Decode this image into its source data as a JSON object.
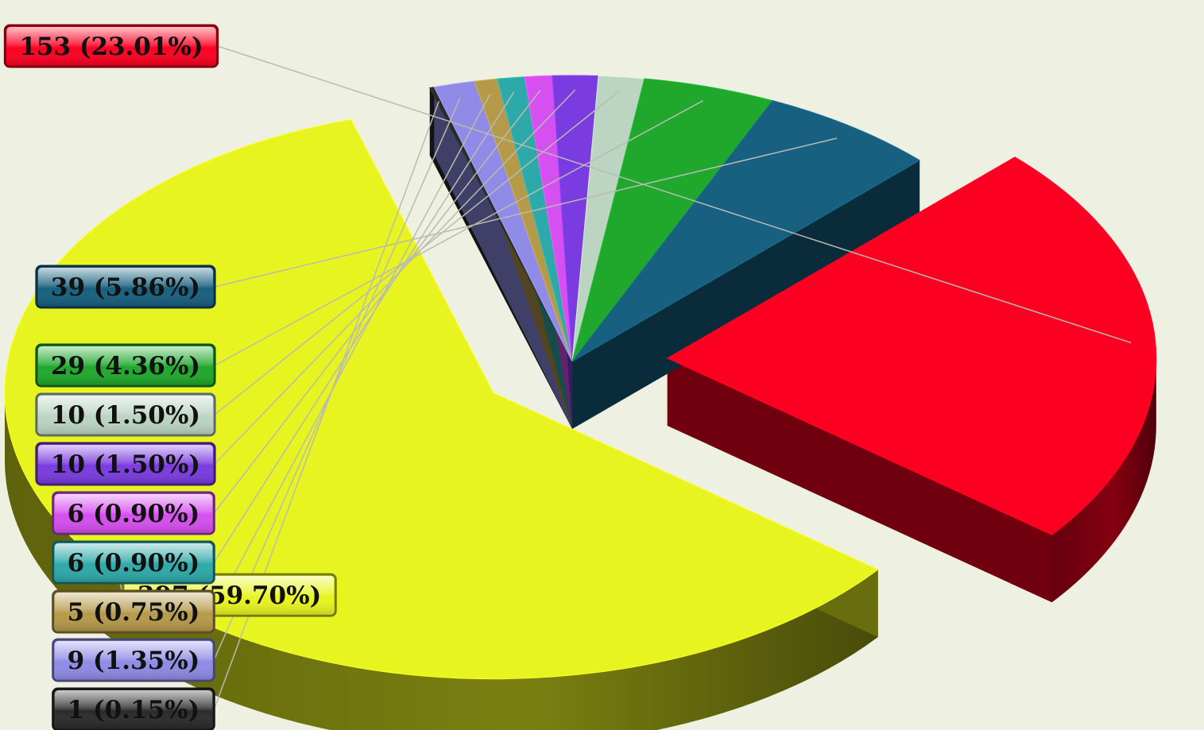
{
  "chart_data": {
    "type": "pie",
    "style": "3d-exploded",
    "title": "",
    "slices": [
      {
        "value": 153,
        "percent": 23.01,
        "label": "153 (23.01%)",
        "color": "#fc0021",
        "exploded": true
      },
      {
        "value": 397,
        "percent": 59.7,
        "label": "397 (59.70%)",
        "color": "#e8f41f",
        "exploded": true
      },
      {
        "value": 1,
        "percent": 0.15,
        "label": "1 (0.15%)",
        "color": "#2b2b2b",
        "exploded": false
      },
      {
        "value": 9,
        "percent": 1.35,
        "label": "9 (1.35%)",
        "color": "#8f8be6",
        "exploded": false
      },
      {
        "value": 5,
        "percent": 0.75,
        "label": "5 (0.75%)",
        "color": "#b59a4a",
        "exploded": false
      },
      {
        "value": 6,
        "percent": 0.9,
        "label": "6 (0.90%)",
        "color": "#2ea9a9",
        "exploded": false
      },
      {
        "value": 6,
        "percent": 0.9,
        "label": "6 (0.90%)",
        "color": "#d64ff0",
        "exploded": false
      },
      {
        "value": 10,
        "percent": 1.5,
        "label": "10 (1.50%)",
        "color": "#7a3be0",
        "exploded": false
      },
      {
        "value": 10,
        "percent": 1.5,
        "label": "10 (1.50%)",
        "color": "#bcd4c2",
        "exploded": false
      },
      {
        "value": 29,
        "percent": 4.36,
        "label": "29 (4.36%)",
        "color": "#1fa82c",
        "exploded": false
      },
      {
        "value": 39,
        "percent": 5.86,
        "label": "39 (5.86%)",
        "color": "#17607f",
        "exploded": false
      }
    ],
    "legend": "none",
    "background": "#eef0e2"
  }
}
